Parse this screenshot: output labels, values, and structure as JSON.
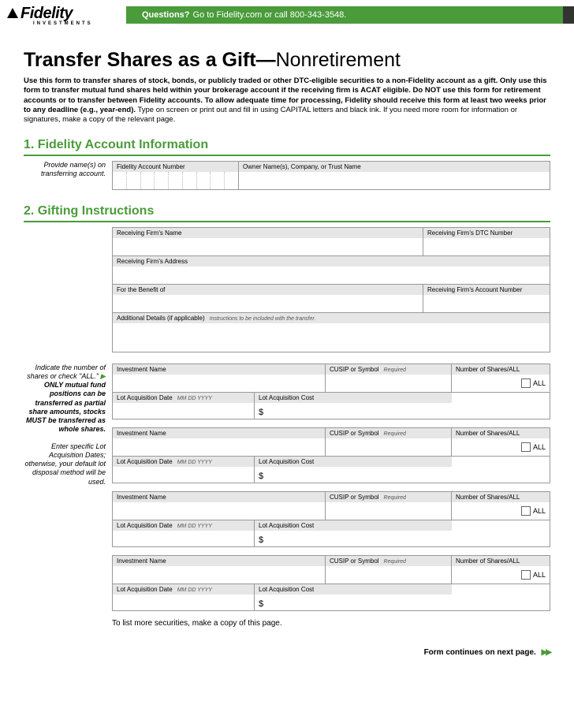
{
  "brand": {
    "name": "Fidelity",
    "sub": "INVESTMENTS"
  },
  "headerBar": {
    "questions": "Questions?",
    "rest": "Go to Fidelity.com or call 800-343-3548."
  },
  "title": {
    "bold": "Transfer Shares as a Gift—",
    "light": "Nonretirement"
  },
  "intro": {
    "b1": "Use this form to transfer shares of stock, bonds, or publicly traded or other DTC-eligible securities to a non-Fidelity account as a gift. Only use this form to transfer mutual fund shares held within your brokerage account if the receiving firm is ACAT eligible. Do NOT use this form for retirement accounts or to transfer between Fidelity accounts. To allow adequate time for processing, Fidelity should receive this form at least two weeks prior to any deadline (e.g., year-end).",
    "rest": " Type on screen or print out and fill in using CAPITAL letters and black ink. If you need more room for information or signatures, make a copy of the relevant page."
  },
  "section1": {
    "heading": "1. Fidelity Account Information",
    "sidebar": "Provide name(s) on transferring account.",
    "acctLabel": "Fidelity Account Number",
    "ownerLabel": "Owner Name(s), Company, or Trust Name"
  },
  "section2": {
    "heading": "2. Gifting Instructions",
    "rfName": "Receiving Firm's Name",
    "dtc": "Receiving Firm's DTC Number",
    "rfAddr": "Receiving Firm's Address",
    "benefit": "For the Benefit of",
    "rfAcct": "Receiving Firm's Account Number",
    "addl": "Additional Details (if applicable)",
    "addlHint": "Instructions to be included with the transfer.",
    "sidebar1a": "Indicate the number of shares or check \"ALL.\"",
    "sidebar1b": "ONLY mutual fund positions can be transferred as partial share amounts, stocks MUST be transferred as whole shares.",
    "sidebar2": "Enter specific Lot Acquisition Dates; otherwise, your default lot disposal method will be used.",
    "inv": {
      "name": "Investment Name",
      "cusip": "CUSIP or Symbol",
      "req": "Required",
      "shares": "Number of Shares/ALL",
      "all": "ALL",
      "lotDate": "Lot Acquisition Date",
      "lotDateHint": "MM DD YYYY",
      "lotCost": "Lot Acquisition Cost",
      "dollar": "$"
    },
    "moreNote": "To list more securities, make a copy of this page."
  },
  "footer": "Form continues on next page.",
  "colors": {
    "green": "#4a9b3a",
    "fieldBg": "#e6e6e6"
  }
}
